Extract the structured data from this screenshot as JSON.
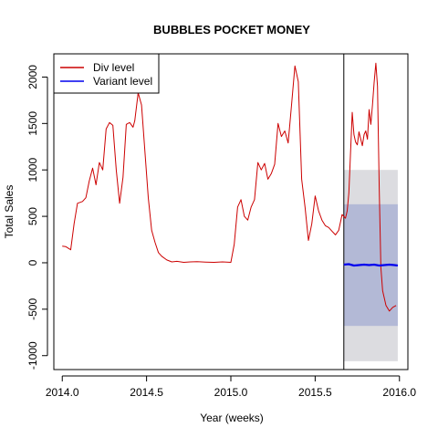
{
  "chart_data": {
    "type": "line",
    "title": "BUBBLES POCKET MONEY",
    "xlabel": "Year (weeks)",
    "ylabel": "Total Sales",
    "xlim": [
      2013.95,
      2016.05
    ],
    "ylim": [
      -1150,
      2250
    ],
    "x_ticks": [
      2014.0,
      2014.5,
      2015.0,
      2015.5,
      2016.0
    ],
    "x_tick_labels": [
      "2014.0",
      "2014.5",
      "2015.0",
      "2015.5",
      "2016.0"
    ],
    "y_ticks": [
      -1000,
      -500,
      0,
      500,
      1000,
      1500,
      2000
    ],
    "y_tick_labels": [
      "-1000",
      "-500",
      "0",
      "500",
      "1000",
      "1500",
      "2000"
    ],
    "grid": false,
    "legend_position": "top-left",
    "forecast_start": 2015.67,
    "colors": {
      "div": "#cc0000",
      "variant": "#0000ee",
      "band_outer": "#dcdce0",
      "band_inner": "#b3b9d6"
    },
    "series": [
      {
        "name": "Div level",
        "color": "#cc0000",
        "x": [
          2014.0,
          2014.02,
          2014.05,
          2014.07,
          2014.09,
          2014.12,
          2014.14,
          2014.16,
          2014.18,
          2014.2,
          2014.22,
          2014.24,
          2014.26,
          2014.28,
          2014.3,
          2014.32,
          2014.34,
          2014.36,
          2014.38,
          2014.4,
          2014.42,
          2014.43,
          2014.45,
          2014.47,
          2014.49,
          2014.51,
          2014.53,
          2014.55,
          2014.57,
          2014.59,
          2014.62,
          2014.65,
          2014.68,
          2014.72,
          2014.76,
          2014.8,
          2014.85,
          2014.9,
          2014.95,
          2015.0,
          2015.02,
          2015.04,
          2015.06,
          2015.08,
          2015.1,
          2015.12,
          2015.14,
          2015.16,
          2015.18,
          2015.2,
          2015.22,
          2015.24,
          2015.26,
          2015.28,
          2015.3,
          2015.32,
          2015.34,
          2015.36,
          2015.38,
          2015.4,
          2015.42,
          2015.44,
          2015.46,
          2015.48,
          2015.5,
          2015.52,
          2015.54,
          2015.56,
          2015.58,
          2015.6,
          2015.62,
          2015.64,
          2015.66,
          2015.68,
          2015.69,
          2015.7,
          2015.72,
          2015.73,
          2015.74,
          2015.75,
          2015.76,
          2015.78,
          2015.79,
          2015.8,
          2015.81,
          2015.82,
          2015.83,
          2015.84,
          2015.85,
          2015.86,
          2015.87,
          2015.88,
          2015.89,
          2015.9,
          2015.92,
          2015.94,
          2015.96,
          2015.98
        ],
        "y": [
          180,
          175,
          140,
          420,
          640,
          660,
          700,
          880,
          1020,
          840,
          1080,
          1000,
          1440,
          1510,
          1480,
          1000,
          640,
          920,
          1490,
          1510,
          1460,
          1530,
          1830,
          1700,
          1200,
          700,
          350,
          220,
          110,
          70,
          30,
          10,
          15,
          5,
          10,
          12,
          8,
          5,
          10,
          5,
          200,
          600,
          680,
          500,
          460,
          600,
          680,
          1080,
          1000,
          1070,
          900,
          960,
          1060,
          1500,
          1360,
          1420,
          1290,
          1700,
          2120,
          1950,
          900,
          600,
          240,
          420,
          720,
          560,
          460,
          400,
          380,
          340,
          300,
          350,
          520,
          480,
          560,
          750,
          1620,
          1380,
          1300,
          1270,
          1410,
          1260,
          1380,
          1420,
          1330,
          1650,
          1490,
          1700,
          1940,
          2150,
          1900,
          800,
          -50,
          -300,
          -460,
          -520,
          -480,
          -460
        ]
      },
      {
        "name": "Variant level",
        "color": "#0000ee",
        "x": [
          2015.67,
          2015.7,
          2015.73,
          2015.76,
          2015.79,
          2015.82,
          2015.85,
          2015.88,
          2015.91,
          2015.94,
          2015.97,
          2015.99
        ],
        "y": [
          -20,
          -15,
          -30,
          -25,
          -20,
          -25,
          -20,
          -30,
          -25,
          -20,
          -25,
          -30
        ]
      }
    ],
    "bands": {
      "x_range": [
        2015.67,
        2015.99
      ],
      "outer": {
        "lower": -1060,
        "upper": 1000
      },
      "inner": {
        "lower": -680,
        "upper": 630
      }
    }
  }
}
